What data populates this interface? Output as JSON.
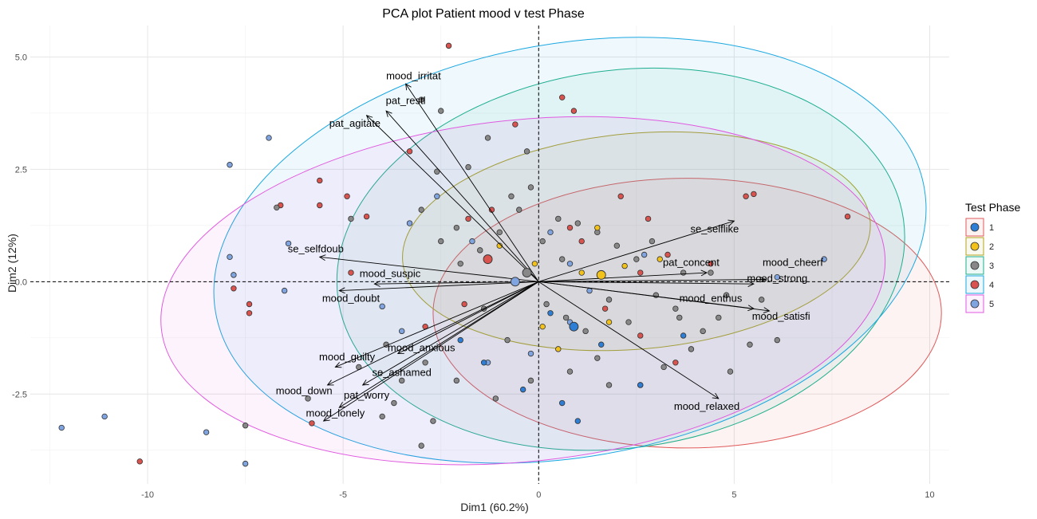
{
  "chart_data": {
    "type": "scatter",
    "title": "PCA plot Patient mood v test Phase",
    "xlabel": "Dim1 (60.2%)",
    "ylabel": "Dim2 (12%)",
    "xlim": [
      -13,
      10.5
    ],
    "ylim": [
      -4.5,
      5.7
    ],
    "xticks": [
      -10,
      -5,
      0,
      5,
      10
    ],
    "xtick_labels": [
      "-10",
      "-5",
      "0",
      "5",
      "10"
    ],
    "yticks": [
      -2.5,
      0.0,
      2.5,
      5.0
    ],
    "ytick_labels": [
      "-2.5",
      "0.0",
      "2.5",
      "5.0"
    ],
    "grid": true,
    "legend": {
      "title": "Test Phase",
      "position": "right",
      "entries": [
        {
          "label": "1",
          "fill": "#2E7ED6",
          "stroke": "#E05A5A"
        },
        {
          "label": "2",
          "fill": "#F2C21B",
          "stroke": "#B3A31B"
        },
        {
          "label": "3",
          "fill": "#888888",
          "stroke": "#1FAF8A"
        },
        {
          "label": "4",
          "fill": "#D9534F",
          "stroke": "#1AA7E0"
        },
        {
          "label": "5",
          "fill": "#7FA4E0",
          "stroke": "#E05AE0"
        }
      ]
    },
    "ellipses": [
      {
        "group": "1",
        "cx": 3.8,
        "cy": -0.7,
        "rx": 6.5,
        "ry": 3.0,
        "angle": 0,
        "fill": "#E05A5A",
        "stroke": "#E05A5A"
      },
      {
        "group": "2",
        "cx": 2.5,
        "cy": 0.9,
        "rx": 6.0,
        "ry": 2.4,
        "angle": 5,
        "fill": "#B3A31B",
        "stroke": "#B3A31B"
      },
      {
        "group": "3",
        "cx": 2.1,
        "cy": 0.5,
        "rx": 7.3,
        "ry": 4.2,
        "angle": 8,
        "fill": "#1FAF8A",
        "stroke": "#1FAF8A"
      },
      {
        "group": "4",
        "cx": 0.8,
        "cy": 0.7,
        "rx": 9.2,
        "ry": 4.6,
        "angle": 10,
        "fill": "#1AA7E0",
        "stroke": "#1AA7E0"
      },
      {
        "group": "5",
        "cx": -0.4,
        "cy": -0.2,
        "rx": 9.3,
        "ry": 3.8,
        "angle": 6,
        "fill": "#E05AE0",
        "stroke": "#E05AE0"
      }
    ],
    "centroids": [
      {
        "group": "1",
        "x": 0.9,
        "y": -1.0
      },
      {
        "group": "2",
        "x": 1.6,
        "y": 0.15
      },
      {
        "group": "3",
        "x": -0.3,
        "y": 0.2
      },
      {
        "group": "4",
        "x": -1.3,
        "y": 0.5
      },
      {
        "group": "5",
        "x": -0.6,
        "y": 0.0
      }
    ],
    "variables": [
      {
        "name": "mood_irritat",
        "x": -3.4,
        "y": 4.4,
        "lx": -3.2,
        "ly": 4.5
      },
      {
        "name": "pat_restl",
        "x": -3.9,
        "y": 3.8,
        "lx": -3.4,
        "ly": 3.95
      },
      {
        "name": "pat_agitate",
        "x": -4.4,
        "y": 3.7,
        "lx": -4.7,
        "ly": 3.45
      },
      {
        "name": "se_selfdoub",
        "x": -5.6,
        "y": 0.55,
        "lx": -5.7,
        "ly": 0.65
      },
      {
        "name": "mood_suspic",
        "x": -4.2,
        "y": -0.05,
        "lx": -3.8,
        "ly": 0.1
      },
      {
        "name": "mood_doubt",
        "x": -5.1,
        "y": -0.2,
        "lx": -4.8,
        "ly": -0.45
      },
      {
        "name": "mood_guilty",
        "x": -5.2,
        "y": -1.9,
        "lx": -4.9,
        "ly": -1.75
      },
      {
        "name": "mood_anxious",
        "x": -3.6,
        "y": -1.6,
        "lx": -3.0,
        "ly": -1.55
      },
      {
        "name": "se_ashamed",
        "x": -4.5,
        "y": -2.3,
        "lx": -3.5,
        "ly": -2.1
      },
      {
        "name": "mood_down",
        "x": -5.4,
        "y": -2.3,
        "lx": -6.0,
        "ly": -2.5
      },
      {
        "name": "pat_worry",
        "x": -5.1,
        "y": -2.8,
        "lx": -4.4,
        "ly": -2.6
      },
      {
        "name": "mood_lonely",
        "x": -5.5,
        "y": -3.1,
        "lx": -5.2,
        "ly": -3.0
      },
      {
        "name": "se_selflike",
        "x": 5.0,
        "y": 1.35,
        "lx": 4.5,
        "ly": 1.1
      },
      {
        "name": "pat_concent",
        "x": 4.3,
        "y": 0.2,
        "lx": 3.9,
        "ly": 0.35
      },
      {
        "name": "mood_cheerf",
        "x": 5.8,
        "y": 0.05,
        "lx": 6.5,
        "ly": 0.35
      },
      {
        "name": "mood_strong",
        "x": 5.5,
        "y": -0.05,
        "lx": 6.1,
        "ly": 0.0
      },
      {
        "name": "mood_enthus",
        "x": 5.5,
        "y": -0.6,
        "lx": 4.4,
        "ly": -0.45
      },
      {
        "name": "mood_satisfi",
        "x": 5.9,
        "y": -0.65,
        "lx": 6.2,
        "ly": -0.85
      },
      {
        "name": "mood_relaxed",
        "x": 4.6,
        "y": -2.6,
        "lx": 4.3,
        "ly": -2.85
      }
    ],
    "points": [
      {
        "g": "4",
        "x": -2.3,
        "y": 5.25
      },
      {
        "g": "4",
        "x": -0.6,
        "y": 3.5
      },
      {
        "g": "4",
        "x": 0.6,
        "y": 4.1
      },
      {
        "g": "4",
        "x": 0.9,
        "y": 3.8
      },
      {
        "g": "4",
        "x": 5.3,
        "y": 1.9
      },
      {
        "g": "4",
        "x": 5.5,
        "y": 1.95
      },
      {
        "g": "4",
        "x": 7.9,
        "y": 1.45
      },
      {
        "g": "4",
        "x": -5.6,
        "y": 2.25
      },
      {
        "g": "4",
        "x": -4.9,
        "y": 1.9
      },
      {
        "g": "4",
        "x": -4.4,
        "y": 1.45
      },
      {
        "g": "4",
        "x": -5.6,
        "y": 1.7
      },
      {
        "g": "4",
        "x": -6.6,
        "y": 1.7
      },
      {
        "g": "4",
        "x": -7.4,
        "y": -0.5
      },
      {
        "g": "4",
        "x": -7.4,
        "y": -0.7
      },
      {
        "g": "4",
        "x": -7.8,
        "y": -0.15
      },
      {
        "g": "4",
        "x": -10.2,
        "y": -4.0
      },
      {
        "g": "4",
        "x": -5.8,
        "y": -3.15
      },
      {
        "g": "4",
        "x": -4.8,
        "y": 0.2
      },
      {
        "g": "4",
        "x": -3.3,
        "y": 2.9
      },
      {
        "g": "4",
        "x": -1.8,
        "y": 1.4
      },
      {
        "g": "4",
        "x": 2.1,
        "y": 1.9
      },
      {
        "g": "4",
        "x": 2.8,
        "y": 1.4
      },
      {
        "g": "4",
        "x": 3.3,
        "y": 0.6
      },
      {
        "g": "4",
        "x": 1.7,
        "y": -0.6
      },
      {
        "g": "4",
        "x": 2.6,
        "y": -1.2
      },
      {
        "g": "4",
        "x": 3.5,
        "y": -1.8
      },
      {
        "g": "4",
        "x": -1.9,
        "y": -0.5
      },
      {
        "g": "4",
        "x": -2.9,
        "y": -1.0
      },
      {
        "g": "4",
        "x": 0.8,
        "y": 1.2
      },
      {
        "g": "4",
        "x": -1.2,
        "y": 1.6
      },
      {
        "g": "4",
        "x": 1.1,
        "y": 0.9
      },
      {
        "g": "4",
        "x": 2.6,
        "y": 0.2
      },
      {
        "g": "4",
        "x": 4.4,
        "y": 0.4
      },
      {
        "g": "5",
        "x": -6.9,
        "y": 3.2
      },
      {
        "g": "5",
        "x": -7.9,
        "y": 2.6
      },
      {
        "g": "5",
        "x": -7.9,
        "y": 0.55
      },
      {
        "g": "5",
        "x": -7.8,
        "y": 0.15
      },
      {
        "g": "5",
        "x": -6.4,
        "y": 0.85
      },
      {
        "g": "5",
        "x": -6.5,
        "y": -0.2
      },
      {
        "g": "5",
        "x": -12.2,
        "y": -3.25
      },
      {
        "g": "5",
        "x": -11.1,
        "y": -3.0
      },
      {
        "g": "5",
        "x": -8.5,
        "y": -3.35
      },
      {
        "g": "5",
        "x": -7.5,
        "y": -4.05
      },
      {
        "g": "5",
        "x": -3.3,
        "y": 1.3
      },
      {
        "g": "5",
        "x": -2.6,
        "y": 1.9
      },
      {
        "g": "5",
        "x": 0.8,
        "y": 0.4
      },
      {
        "g": "5",
        "x": 0.8,
        "y": -0.9
      },
      {
        "g": "5",
        "x": 1.3,
        "y": -0.2
      },
      {
        "g": "5",
        "x": 7.3,
        "y": 0.5
      },
      {
        "g": "5",
        "x": 6.1,
        "y": 0.1
      },
      {
        "g": "5",
        "x": -1.3,
        "y": -1.8
      },
      {
        "g": "5",
        "x": -0.2,
        "y": -1.6
      },
      {
        "g": "5",
        "x": -4.0,
        "y": -0.55
      },
      {
        "g": "5",
        "x": -3.5,
        "y": -1.1
      },
      {
        "g": "5",
        "x": -1.7,
        "y": 0.9
      },
      {
        "g": "5",
        "x": 0.3,
        "y": 1.1
      },
      {
        "g": "5",
        "x": 2.7,
        "y": 0.6
      },
      {
        "g": "3",
        "x": -3.0,
        "y": 4.05
      },
      {
        "g": "3",
        "x": -2.5,
        "y": 3.8
      },
      {
        "g": "3",
        "x": -2.6,
        "y": 2.45
      },
      {
        "g": "3",
        "x": -1.8,
        "y": 2.55
      },
      {
        "g": "3",
        "x": -1.3,
        "y": 3.2
      },
      {
        "g": "3",
        "x": -0.3,
        "y": 2.9
      },
      {
        "g": "3",
        "x": -0.2,
        "y": 2.1
      },
      {
        "g": "3",
        "x": 0.5,
        "y": 1.4
      },
      {
        "g": "3",
        "x": 1.0,
        "y": 1.3
      },
      {
        "g": "3",
        "x": 1.5,
        "y": 1.1
      },
      {
        "g": "3",
        "x": 2.0,
        "y": 0.8
      },
      {
        "g": "3",
        "x": 2.5,
        "y": 0.5
      },
      {
        "g": "3",
        "x": -0.7,
        "y": 1.9
      },
      {
        "g": "3",
        "x": -1.0,
        "y": 1.1
      },
      {
        "g": "3",
        "x": -1.5,
        "y": 0.7
      },
      {
        "g": "3",
        "x": -2.0,
        "y": 0.4
      },
      {
        "g": "3",
        "x": -2.5,
        "y": 0.9
      },
      {
        "g": "3",
        "x": -3.0,
        "y": 1.6
      },
      {
        "g": "3",
        "x": 0.2,
        "y": -0.5
      },
      {
        "g": "3",
        "x": 0.7,
        "y": -0.8
      },
      {
        "g": "3",
        "x": 1.2,
        "y": -1.1
      },
      {
        "g": "3",
        "x": 1.8,
        "y": -0.4
      },
      {
        "g": "3",
        "x": 2.3,
        "y": -0.9
      },
      {
        "g": "3",
        "x": 3.0,
        "y": -0.3
      },
      {
        "g": "3",
        "x": 3.6,
        "y": -0.8
      },
      {
        "g": "3",
        "x": 4.2,
        "y": -1.1
      },
      {
        "g": "3",
        "x": 4.8,
        "y": -0.3
      },
      {
        "g": "3",
        "x": 5.7,
        "y": -0.4
      },
      {
        "g": "3",
        "x": 6.1,
        "y": -1.3
      },
      {
        "g": "3",
        "x": 5.4,
        "y": -1.4
      },
      {
        "g": "3",
        "x": 4.9,
        "y": -2.0
      },
      {
        "g": "3",
        "x": 3.2,
        "y": -1.9
      },
      {
        "g": "3",
        "x": 2.6,
        "y": -2.3
      },
      {
        "g": "3",
        "x": 1.8,
        "y": -2.3
      },
      {
        "g": "3",
        "x": 0.8,
        "y": -2.0
      },
      {
        "g": "3",
        "x": -0.2,
        "y": -2.2
      },
      {
        "g": "3",
        "x": -1.1,
        "y": -2.6
      },
      {
        "g": "3",
        "x": -2.1,
        "y": -2.2
      },
      {
        "g": "3",
        "x": -2.9,
        "y": -1.8
      },
      {
        "g": "3",
        "x": -3.9,
        "y": -1.4
      },
      {
        "g": "3",
        "x": -4.6,
        "y": -1.9
      },
      {
        "g": "3",
        "x": -3.7,
        "y": -2.7
      },
      {
        "g": "3",
        "x": -5.9,
        "y": -2.6
      },
      {
        "g": "3",
        "x": -7.5,
        "y": -3.2
      },
      {
        "g": "3",
        "x": -3.0,
        "y": -3.65
      },
      {
        "g": "3",
        "x": -6.7,
        "y": 1.65
      },
      {
        "g": "3",
        "x": -4.8,
        "y": 1.4
      },
      {
        "g": "3",
        "x": 3.7,
        "y": 0.2
      },
      {
        "g": "3",
        "x": 4.4,
        "y": 0.2
      },
      {
        "g": "3",
        "x": 3.5,
        "y": -0.6
      },
      {
        "g": "3",
        "x": -0.5,
        "y": 1.6
      },
      {
        "g": "3",
        "x": 0.1,
        "y": 0.9
      },
      {
        "g": "3",
        "x": 0.6,
        "y": 0.5
      },
      {
        "g": "3",
        "x": -2.1,
        "y": 1.2
      },
      {
        "g": "3",
        "x": -1.4,
        "y": -0.6
      },
      {
        "g": "3",
        "x": -0.8,
        "y": -1.3
      },
      {
        "g": "3",
        "x": 1.5,
        "y": -1.7
      },
      {
        "g": "3",
        "x": 3.9,
        "y": -1.5
      },
      {
        "g": "3",
        "x": 4.6,
        "y": -0.8
      },
      {
        "g": "3",
        "x": 2.9,
        "y": 0.9
      },
      {
        "g": "3",
        "x": -3.5,
        "y": -2.2
      },
      {
        "g": "3",
        "x": -2.7,
        "y": -3.1
      },
      {
        "g": "3",
        "x": -4.0,
        "y": -3.0
      },
      {
        "g": "2",
        "x": 1.5,
        "y": 1.2
      },
      {
        "g": "2",
        "x": 2.2,
        "y": 0.35
      },
      {
        "g": "2",
        "x": 1.1,
        "y": 0.2
      },
      {
        "g": "2",
        "x": 0.1,
        "y": -1.0
      },
      {
        "g": "2",
        "x": -1.0,
        "y": 0.8
      },
      {
        "g": "2",
        "x": 3.1,
        "y": 0.5
      },
      {
        "g": "2",
        "x": 0.5,
        "y": -1.5
      },
      {
        "g": "2",
        "x": -0.1,
        "y": 0.4
      },
      {
        "g": "2",
        "x": 1.8,
        "y": -0.9
      },
      {
        "g": "1",
        "x": 1.0,
        "y": -3.1
      },
      {
        "g": "1",
        "x": 0.6,
        "y": -2.7
      },
      {
        "g": "1",
        "x": 2.6,
        "y": -2.3
      },
      {
        "g": "1",
        "x": -1.4,
        "y": -1.8
      },
      {
        "g": "1",
        "x": 0.3,
        "y": -0.7
      },
      {
        "g": "1",
        "x": -2.0,
        "y": -1.3
      },
      {
        "g": "1",
        "x": 3.7,
        "y": -1.2
      },
      {
        "g": "1",
        "x": -0.4,
        "y": -2.4
      },
      {
        "g": "1",
        "x": 1.6,
        "y": -1.4
      }
    ]
  }
}
